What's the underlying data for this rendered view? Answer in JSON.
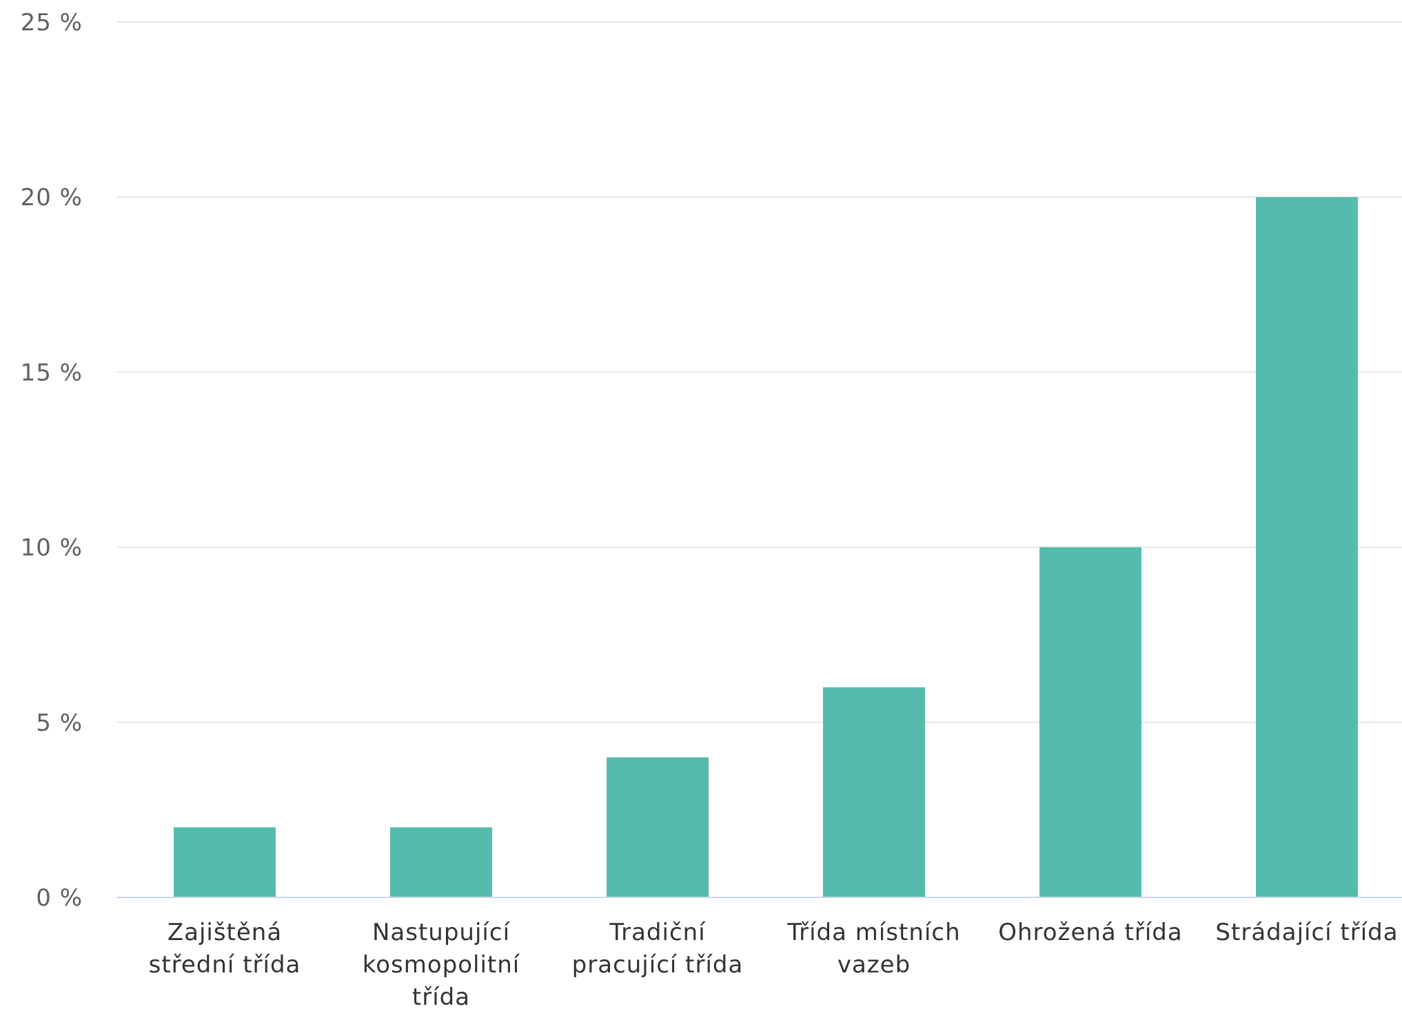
{
  "chart_data": {
    "type": "bar",
    "title": "",
    "xlabel": "",
    "ylabel": "",
    "ylim": [
      0,
      25
    ],
    "yticks": [
      {
        "value": 0,
        "label": "0 %"
      },
      {
        "value": 5,
        "label": "5 %"
      },
      {
        "value": 10,
        "label": "10 %"
      },
      {
        "value": 15,
        "label": "15 %"
      },
      {
        "value": 20,
        "label": "20 %"
      },
      {
        "value": 25,
        "label": "25 %"
      }
    ],
    "grid": true,
    "legend": "none",
    "bar_color": "#55bcad",
    "categories": [
      {
        "name": "Zajištěná střední třída",
        "lines": [
          "Zajištěná",
          "střední třída"
        ]
      },
      {
        "name": "Nastupující kosmopolitní třída",
        "lines": [
          "Nastupující",
          "kosmopolitní",
          "třída"
        ]
      },
      {
        "name": "Tradiční pracující třída",
        "lines": [
          "Tradiční",
          "pracující třída"
        ]
      },
      {
        "name": "Třída místních vazeb",
        "lines": [
          "Třída místních",
          "vazeb"
        ]
      },
      {
        "name": "Ohrožená třída",
        "lines": [
          "Ohrožená třída"
        ]
      },
      {
        "name": "Strádající třída",
        "lines": [
          "Strádající třída"
        ]
      }
    ],
    "values": [
      2,
      2,
      4,
      6,
      10,
      20
    ]
  }
}
